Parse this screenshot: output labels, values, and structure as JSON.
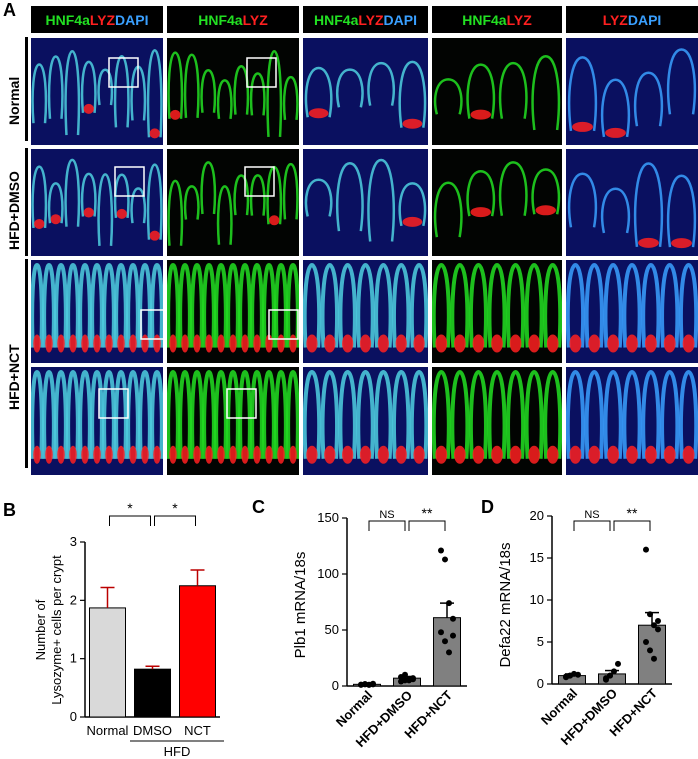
{
  "panel_labels": {
    "a": "A",
    "b": "B",
    "c": "C",
    "d": "D"
  },
  "micrograph": {
    "headers": [
      {
        "parts": [
          {
            "text": "HNF4a",
            "color": "#22e022"
          },
          {
            "text": "LYZ",
            "color": "#ff2020"
          },
          {
            "text": "DAPI",
            "color": "#3aa0ff"
          }
        ]
      },
      {
        "parts": [
          {
            "text": "HNF4a",
            "color": "#22e022"
          },
          {
            "text": "LYZ",
            "color": "#ff2020"
          }
        ]
      },
      {
        "parts": [
          {
            "text": "HNF4a",
            "color": "#22e022"
          },
          {
            "text": "LYZ",
            "color": "#ff2020"
          },
          {
            "text": "DAPI",
            "color": "#3aa0ff"
          }
        ]
      },
      {
        "parts": [
          {
            "text": "HNF4a",
            "color": "#22e022"
          },
          {
            "text": "LYZ",
            "color": "#ff2020"
          }
        ]
      },
      {
        "parts": [
          {
            "text": "LYZ",
            "color": "#ff2020"
          },
          {
            "text": "DAPI",
            "color": "#3aa0ff"
          }
        ]
      }
    ],
    "row_labels": [
      "Normal",
      "HFD+DMSO",
      "HFD+NCT"
    ],
    "channel_colors": {
      "hnf4a": "#22e022",
      "lyz": "#ff2020",
      "dapi": "#3aa0ff",
      "merge": "#4fd0e0"
    }
  },
  "chart_data": [
    {
      "type": "bar",
      "panel": "B",
      "categories": [
        "Normal",
        "DMSO",
        "NCT"
      ],
      "group_label": "HFD",
      "values": [
        1.87,
        0.82,
        2.25
      ],
      "errors": [
        0.35,
        0.05,
        0.27
      ],
      "colors": [
        "#d9d9d9",
        "#000000",
        "#ff0000"
      ],
      "ylabel": "Number of\nLysozyme+ cells per crypt",
      "ylabel_lines": [
        "Number of",
        "Lysozyme+ cells per crypt"
      ],
      "ylim": [
        0,
        3
      ],
      "yticks": [
        "0",
        "1",
        "2",
        "3"
      ],
      "significance": [
        {
          "from": 0,
          "to": 1,
          "label": "*"
        },
        {
          "from": 1,
          "to": 2,
          "label": "*"
        }
      ]
    },
    {
      "type": "bar",
      "panel": "C",
      "categories": [
        "Normal",
        "HFD+DMSO",
        "HFD+NCT"
      ],
      "values": [
        1.5,
        7,
        61
      ],
      "errors": [
        0.5,
        1.5,
        13
      ],
      "ylabel": "Plb1 mRNA/18s",
      "ylim": [
        0,
        150
      ],
      "yticks": [
        "0",
        "50",
        "100",
        "150"
      ],
      "points": [
        [
          1,
          1.5,
          1,
          2,
          1.2,
          1.8,
          1.1,
          1.4
        ],
        [
          4,
          5,
          6,
          7,
          8,
          10,
          5,
          6
        ],
        [
          121,
          113,
          74,
          60,
          48,
          40,
          30,
          45
        ]
      ],
      "significance": [
        {
          "from": 0,
          "to": 1,
          "label": "NS"
        },
        {
          "from": 1,
          "to": 2,
          "label": "**"
        }
      ]
    },
    {
      "type": "bar",
      "panel": "D",
      "categories": [
        "Normal",
        "HFD+DMSO",
        "HFD+NCT"
      ],
      "values": [
        1.0,
        1.2,
        7.0
      ],
      "errors": [
        0.2,
        0.4,
        1.5
      ],
      "ylabel": "Defa22 mRNA/18s",
      "ylim": [
        0,
        20
      ],
      "yticks": [
        "0",
        "5",
        "10",
        "15",
        "20"
      ],
      "points": [
        [
          0.8,
          1.0,
          1.2,
          1.1,
          0.9,
          1.0
        ],
        [
          0.5,
          1.0,
          1.5,
          2.4,
          0.7,
          1.0
        ],
        [
          16,
          8.3,
          7,
          6.5,
          5,
          4,
          3,
          7.5
        ]
      ],
      "significance": [
        {
          "from": 0,
          "to": 1,
          "label": "NS"
        },
        {
          "from": 1,
          "to": 2,
          "label": "**"
        }
      ]
    }
  ]
}
